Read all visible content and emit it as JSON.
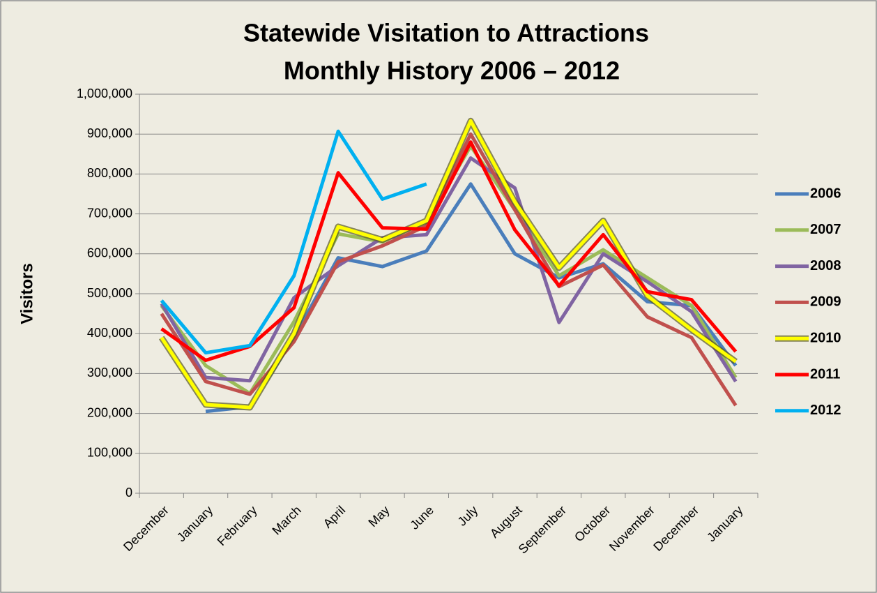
{
  "chart_data": {
    "type": "line",
    "title": [
      "Statewide Visitation to Attractions",
      "Monthly History 2006 – 2012"
    ],
    "y_label": "Visitors",
    "categories": [
      "December",
      "January",
      "February",
      "March",
      "April",
      "May",
      "June",
      "July",
      "August",
      "September",
      "October",
      "November",
      "December",
      "January"
    ],
    "series": [
      {
        "name": "2006",
        "color": "#4a7ebb",
        "values": [
          null,
          205000,
          217000,
          390000,
          590000,
          568000,
          607000,
          775000,
          600000,
          540000,
          575000,
          480000,
          470000,
          320000
        ]
      },
      {
        "name": "2007",
        "color": "#9bbb59",
        "values": [
          470000,
          320000,
          250000,
          430000,
          650000,
          630000,
          680000,
          870000,
          710000,
          545000,
          610000,
          540000,
          470000,
          290000
        ]
      },
      {
        "name": "2008",
        "color": "#8064a2",
        "values": [
          475000,
          290000,
          282000,
          490000,
          570000,
          640000,
          648000,
          840000,
          765000,
          428000,
          600000,
          530000,
          455000,
          280000
        ]
      },
      {
        "name": "2009",
        "color": "#c0504d",
        "values": [
          450000,
          280000,
          248000,
          380000,
          580000,
          620000,
          670000,
          900000,
          710000,
          518000,
          572000,
          442000,
          390000,
          220000
        ]
      },
      {
        "name": "2010",
        "color": "#ffff00",
        "outline": "#5a5a20",
        "values": [
          390000,
          222000,
          215000,
          400000,
          668000,
          635000,
          683000,
          933000,
          730000,
          565000,
          683000,
          495000,
          410000,
          330000
        ]
      },
      {
        "name": "2011",
        "color": "#ff0000",
        "values": [
          412000,
          333000,
          368000,
          465000,
          803000,
          665000,
          662000,
          880000,
          660000,
          520000,
          648000,
          505000,
          485000,
          355000
        ]
      },
      {
        "name": "2012",
        "color": "#00b0f0",
        "values": [
          483000,
          352000,
          370000,
          545000,
          907000,
          737000,
          775000,
          null,
          null,
          null,
          null,
          null,
          null,
          null
        ]
      }
    ],
    "ylim": [
      0,
      1000000
    ],
    "yticks": [
      0,
      {
        "value": 100000,
        "label": "100,000"
      },
      {
        "value": 200000,
        "label": "200,000"
      },
      {
        "value": 300000,
        "label": "300,000"
      },
      {
        "value": 400000,
        "label": "400,000"
      },
      {
        "value": 500000,
        "label": "500,000"
      },
      {
        "value": 600000,
        "label": "600,000"
      },
      {
        "value": 700000,
        "label": "700,000"
      },
      {
        "value": 800000,
        "label": "800,000"
      },
      {
        "value": 900000,
        "label": "900,000"
      },
      {
        "value": 1000000,
        "label": "1,000,000"
      }
    ],
    "grid": true,
    "legend": "right"
  }
}
